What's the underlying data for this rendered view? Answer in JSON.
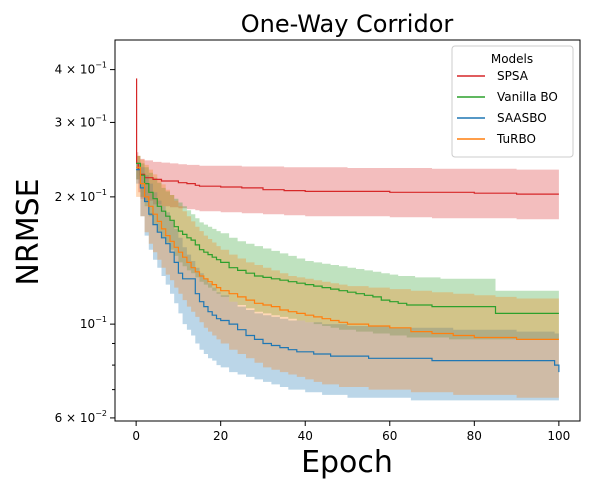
{
  "chart_data": {
    "type": "line",
    "title": "One-Way Corridor",
    "xlabel": "Epoch",
    "ylabel": "NRMSE",
    "xlim": [
      -5,
      105
    ],
    "ylim": [
      0.059,
      0.47
    ],
    "yscale": "log",
    "grid": false,
    "x_ticks": [
      0,
      20,
      40,
      60,
      80,
      100
    ],
    "x_tick_labels": [
      "0",
      "20",
      "40",
      "60",
      "80",
      "100"
    ],
    "y_major_ticks": [
      0.06,
      0.1,
      0.2,
      0.3,
      0.4
    ],
    "y_tick_labels": [
      {
        "base": "6 × 10",
        "exp": "−2"
      },
      {
        "base": "10",
        "exp": "−1"
      },
      {
        "base": "2 × 10",
        "exp": "−1"
      },
      {
        "base": "3 × 10",
        "exp": "−1"
      },
      {
        "base": "4 × 10",
        "exp": "−1"
      }
    ],
    "y_minor_ticks": [
      0.07,
      0.08,
      0.09
    ],
    "legend": {
      "title": "Models",
      "position": "top-right"
    },
    "series": [
      {
        "name": "SPSA",
        "color": "#d62728",
        "x": [
          0,
          0.1,
          0.5,
          1,
          2,
          4,
          6,
          8,
          10,
          12,
          14,
          15,
          20,
          25,
          30,
          35,
          40,
          50,
          60,
          70,
          80,
          90,
          100
        ],
        "y": [
          0.38,
          0.24,
          0.232,
          0.226,
          0.222,
          0.22,
          0.218,
          0.218,
          0.216,
          0.215,
          0.213,
          0.212,
          0.211,
          0.21,
          0.208,
          0.207,
          0.206,
          0.206,
          0.205,
          0.205,
          0.204,
          0.203,
          0.203
        ],
        "lower": [
          0.38,
          0.22,
          0.205,
          0.198,
          0.196,
          0.192,
          0.19,
          0.189,
          0.188,
          0.187,
          0.186,
          0.185,
          0.184,
          0.183,
          0.182,
          0.181,
          0.18,
          0.18,
          0.179,
          0.178,
          0.178,
          0.177,
          0.176
        ],
        "upper": [
          0.38,
          0.255,
          0.25,
          0.246,
          0.244,
          0.242,
          0.241,
          0.24,
          0.239,
          0.238,
          0.238,
          0.237,
          0.237,
          0.236,
          0.236,
          0.235,
          0.235,
          0.234,
          0.234,
          0.233,
          0.233,
          0.232,
          0.232
        ]
      },
      {
        "name": "Vanilla BO",
        "color": "#2ca02c",
        "x": [
          0,
          1,
          2,
          3,
          4,
          5,
          6,
          7,
          8,
          9,
          10,
          11,
          12,
          13,
          14,
          15,
          16,
          17,
          18,
          19,
          20,
          22,
          24,
          26,
          28,
          30,
          32,
          34,
          36,
          38,
          40,
          42,
          44,
          46,
          48,
          50,
          52,
          54,
          56,
          58,
          60,
          62,
          64,
          66,
          68,
          70,
          72,
          74,
          76,
          78,
          80,
          85,
          90,
          95,
          100
        ],
        "y": [
          0.24,
          0.225,
          0.215,
          0.205,
          0.198,
          0.19,
          0.185,
          0.18,
          0.176,
          0.17,
          0.166,
          0.163,
          0.16,
          0.158,
          0.154,
          0.15,
          0.148,
          0.146,
          0.144,
          0.142,
          0.14,
          0.136,
          0.134,
          0.132,
          0.13,
          0.129,
          0.128,
          0.127,
          0.126,
          0.125,
          0.124,
          0.123,
          0.122,
          0.121,
          0.12,
          0.119,
          0.118,
          0.117,
          0.116,
          0.114,
          0.113,
          0.112,
          0.111,
          0.111,
          0.111,
          0.11,
          0.11,
          0.11,
          0.11,
          0.11,
          0.11,
          0.106,
          0.106,
          0.106,
          0.106
        ],
        "lower": [
          0.22,
          0.2,
          0.19,
          0.18,
          0.172,
          0.165,
          0.16,
          0.155,
          0.15,
          0.145,
          0.14,
          0.137,
          0.134,
          0.132,
          0.129,
          0.126,
          0.124,
          0.122,
          0.12,
          0.118,
          0.116,
          0.113,
          0.111,
          0.109,
          0.107,
          0.106,
          0.105,
          0.104,
          0.103,
          0.102,
          0.101,
          0.1,
          0.099,
          0.098,
          0.097,
          0.097,
          0.096,
          0.096,
          0.095,
          0.095,
          0.094,
          0.094,
          0.093,
          0.093,
          0.093,
          0.093,
          0.093,
          0.092,
          0.092,
          0.092,
          0.092,
          0.092,
          0.092,
          0.092,
          0.092
        ],
        "upper": [
          0.25,
          0.24,
          0.235,
          0.228,
          0.222,
          0.216,
          0.21,
          0.206,
          0.202,
          0.198,
          0.194,
          0.19,
          0.186,
          0.182,
          0.178,
          0.174,
          0.172,
          0.17,
          0.168,
          0.166,
          0.164,
          0.16,
          0.157,
          0.155,
          0.153,
          0.151,
          0.149,
          0.147,
          0.145,
          0.143,
          0.141,
          0.14,
          0.139,
          0.138,
          0.137,
          0.136,
          0.135,
          0.134,
          0.133,
          0.132,
          0.131,
          0.13,
          0.13,
          0.129,
          0.129,
          0.129,
          0.128,
          0.128,
          0.128,
          0.128,
          0.128,
          0.12,
          0.12,
          0.12,
          0.12
        ]
      },
      {
        "name": "SAASBO",
        "color": "#1f77b4",
        "x": [
          0,
          1,
          2,
          3,
          4,
          5,
          6,
          7,
          8,
          9,
          10,
          11,
          12,
          13,
          14,
          15,
          16,
          17,
          18,
          19,
          20,
          22,
          24,
          26,
          28,
          30,
          32,
          34,
          36,
          38,
          40,
          42,
          44,
          46,
          48,
          50,
          55,
          60,
          65,
          70,
          75,
          80,
          85,
          90,
          95,
          99,
          100
        ],
        "y": [
          0.232,
          0.21,
          0.195,
          0.182,
          0.172,
          0.165,
          0.16,
          0.155,
          0.148,
          0.14,
          0.132,
          0.128,
          0.128,
          0.128,
          0.118,
          0.113,
          0.11,
          0.107,
          0.105,
          0.103,
          0.102,
          0.1,
          0.097,
          0.094,
          0.092,
          0.09,
          0.089,
          0.088,
          0.087,
          0.086,
          0.086,
          0.085,
          0.085,
          0.084,
          0.084,
          0.084,
          0.083,
          0.083,
          0.083,
          0.082,
          0.082,
          0.082,
          0.082,
          0.082,
          0.082,
          0.08,
          0.077
        ],
        "lower": [
          0.215,
          0.18,
          0.162,
          0.15,
          0.142,
          0.136,
          0.13,
          0.124,
          0.118,
          0.112,
          0.106,
          0.1,
          0.097,
          0.094,
          0.09,
          0.087,
          0.085,
          0.083,
          0.082,
          0.08,
          0.079,
          0.077,
          0.076,
          0.075,
          0.074,
          0.073,
          0.072,
          0.071,
          0.07,
          0.07,
          0.069,
          0.069,
          0.068,
          0.068,
          0.068,
          0.067,
          0.067,
          0.067,
          0.066,
          0.066,
          0.066,
          0.066,
          0.066,
          0.066,
          0.066,
          0.066,
          0.066
        ],
        "upper": [
          0.24,
          0.235,
          0.225,
          0.215,
          0.205,
          0.196,
          0.19,
          0.184,
          0.176,
          0.168,
          0.16,
          0.152,
          0.146,
          0.141,
          0.136,
          0.132,
          0.128,
          0.125,
          0.122,
          0.119,
          0.117,
          0.113,
          0.11,
          0.108,
          0.106,
          0.105,
          0.104,
          0.103,
          0.102,
          0.102,
          0.101,
          0.101,
          0.1,
          0.1,
          0.1,
          0.099,
          0.099,
          0.098,
          0.098,
          0.098,
          0.097,
          0.097,
          0.097,
          0.096,
          0.096,
          0.095,
          0.095
        ]
      },
      {
        "name": "TuRBO",
        "color": "#ff7f0e",
        "x": [
          0,
          1,
          2,
          3,
          4,
          5,
          6,
          7,
          8,
          9,
          10,
          11,
          12,
          13,
          14,
          15,
          16,
          17,
          18,
          19,
          20,
          22,
          24,
          26,
          28,
          30,
          32,
          34,
          36,
          38,
          40,
          42,
          44,
          46,
          48,
          50,
          55,
          60,
          65,
          70,
          75,
          80,
          85,
          90,
          95,
          100
        ],
        "y": [
          0.235,
          0.215,
          0.2,
          0.19,
          0.182,
          0.175,
          0.168,
          0.162,
          0.157,
          0.152,
          0.148,
          0.144,
          0.14,
          0.136,
          0.133,
          0.13,
          0.128,
          0.126,
          0.124,
          0.122,
          0.12,
          0.118,
          0.116,
          0.114,
          0.112,
          0.111,
          0.11,
          0.108,
          0.107,
          0.106,
          0.105,
          0.104,
          0.103,
          0.102,
          0.101,
          0.1,
          0.099,
          0.098,
          0.096,
          0.095,
          0.094,
          0.093,
          0.093,
          0.092,
          0.092,
          0.092
        ],
        "lower": [
          0.2,
          0.18,
          0.165,
          0.155,
          0.148,
          0.142,
          0.136,
          0.131,
          0.127,
          0.122,
          0.118,
          0.114,
          0.11,
          0.107,
          0.104,
          0.101,
          0.098,
          0.096,
          0.094,
          0.092,
          0.09,
          0.087,
          0.085,
          0.083,
          0.081,
          0.079,
          0.078,
          0.077,
          0.076,
          0.075,
          0.074,
          0.073,
          0.072,
          0.072,
          0.071,
          0.071,
          0.07,
          0.07,
          0.069,
          0.069,
          0.068,
          0.068,
          0.068,
          0.067,
          0.067,
          0.067
        ],
        "upper": [
          0.25,
          0.245,
          0.238,
          0.232,
          0.226,
          0.22,
          0.214,
          0.208,
          0.202,
          0.196,
          0.19,
          0.185,
          0.18,
          0.175,
          0.17,
          0.166,
          0.162,
          0.159,
          0.156,
          0.153,
          0.15,
          0.146,
          0.143,
          0.14,
          0.138,
          0.136,
          0.134,
          0.132,
          0.13,
          0.129,
          0.128,
          0.127,
          0.126,
          0.125,
          0.124,
          0.123,
          0.122,
          0.121,
          0.12,
          0.119,
          0.118,
          0.117,
          0.116,
          0.115,
          0.115,
          0.115
        ]
      }
    ]
  }
}
